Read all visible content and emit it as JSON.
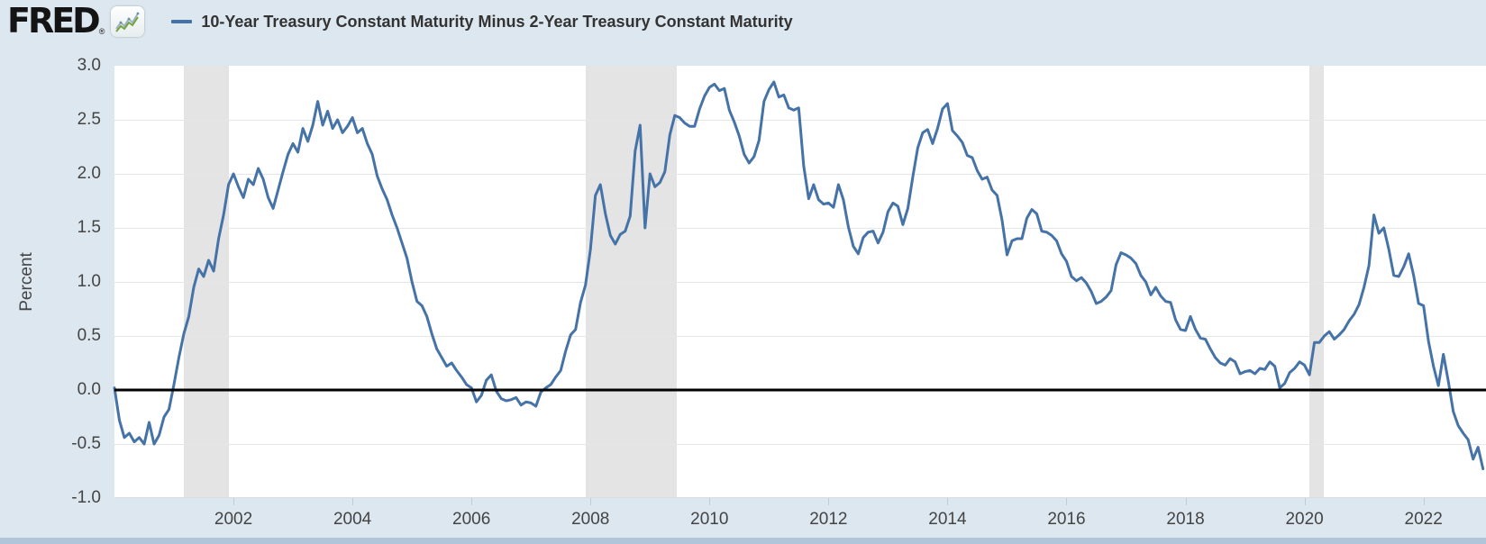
{
  "header": {
    "logo_text": "FRED",
    "registered_mark": "®",
    "legend": {
      "series_label": "10-Year Treasury Constant Maturity Minus 2-Year Treasury Constant Maturity",
      "series_color": "#4572a7"
    }
  },
  "colors": {
    "page_background": "#dde7ef",
    "plot_background": "#ffffff",
    "gridline": "#e6e6e6",
    "recession_band": "#e4e4e4",
    "series_line": "#4572a7",
    "zero_line": "#000000",
    "axis_text": "#444444",
    "bottom_strip": "#b0c6d8",
    "icon_line_green": "#74a33e",
    "icon_line_gray": "#9db3c4"
  },
  "chart_data": {
    "type": "line",
    "title": "10-Year Treasury Constant Maturity Minus 2-Year Treasury Constant Maturity",
    "xlabel": "",
    "ylabel": "Percent",
    "units": "Percent",
    "ylim": [
      -1.0,
      3.0
    ],
    "x_range_years": [
      2000.0,
      2023.05
    ],
    "y_ticks": [
      "3.0",
      "2.5",
      "2.0",
      "1.5",
      "1.0",
      "0.5",
      "0.0",
      "-0.5",
      "-1.0"
    ],
    "y_tick_values": [
      3.0,
      2.5,
      2.0,
      1.5,
      1.0,
      0.5,
      0.0,
      -0.5,
      -1.0
    ],
    "x_ticks": [
      2002,
      2004,
      2006,
      2008,
      2010,
      2012,
      2014,
      2016,
      2018,
      2020,
      2022
    ],
    "grid": "horizontal gridlines at 0.5 intervals; heavy black line at 0.0",
    "legend_position": "top header row",
    "recession_bands_years": [
      [
        2001.17,
        2001.92
      ],
      [
        2007.92,
        2009.45
      ],
      [
        2020.08,
        2020.33
      ]
    ],
    "series": [
      {
        "name": "10-Year Treasury Constant Maturity Minus 2-Year Treasury Constant Maturity",
        "color": "#4572a7",
        "frequency": "monthly",
        "start_year": 2000,
        "points_per_year": 12,
        "values": [
          0.02,
          -0.28,
          -0.44,
          -0.4,
          -0.48,
          -0.44,
          -0.5,
          -0.3,
          -0.5,
          -0.42,
          -0.25,
          -0.18,
          0.05,
          0.3,
          0.52,
          0.68,
          0.95,
          1.12,
          1.05,
          1.2,
          1.1,
          1.4,
          1.62,
          1.9,
          2.0,
          1.88,
          1.78,
          1.95,
          1.9,
          2.05,
          1.95,
          1.78,
          1.68,
          1.85,
          2.02,
          2.18,
          2.28,
          2.2,
          2.42,
          2.3,
          2.45,
          2.67,
          2.45,
          2.58,
          2.42,
          2.5,
          2.38,
          2.44,
          2.52,
          2.38,
          2.42,
          2.28,
          2.18,
          1.98,
          1.86,
          1.76,
          1.62,
          1.5,
          1.36,
          1.22,
          1.0,
          0.82,
          0.78,
          0.68,
          0.52,
          0.38,
          0.3,
          0.22,
          0.25,
          0.18,
          0.12,
          0.05,
          0.02,
          -0.11,
          -0.05,
          0.09,
          0.14,
          -0.01,
          -0.08,
          -0.1,
          -0.09,
          -0.07,
          -0.14,
          -0.11,
          -0.12,
          -0.15,
          -0.02,
          0.02,
          0.05,
          0.12,
          0.18,
          0.36,
          0.51,
          0.56,
          0.81,
          0.97,
          1.3,
          1.8,
          1.9,
          1.63,
          1.43,
          1.35,
          1.44,
          1.47,
          1.61,
          2.21,
          2.45,
          1.5,
          2.0,
          1.88,
          1.92,
          2.02,
          2.36,
          2.54,
          2.52,
          2.47,
          2.44,
          2.44,
          2.6,
          2.72,
          2.8,
          2.83,
          2.77,
          2.79,
          2.59,
          2.48,
          2.35,
          2.18,
          2.1,
          2.16,
          2.31,
          2.67,
          2.78,
          2.85,
          2.71,
          2.73,
          2.61,
          2.59,
          2.61,
          2.07,
          1.77,
          1.9,
          1.76,
          1.72,
          1.73,
          1.69,
          1.9,
          1.76,
          1.51,
          1.33,
          1.26,
          1.41,
          1.46,
          1.47,
          1.36,
          1.46,
          1.65,
          1.73,
          1.7,
          1.53,
          1.68,
          1.97,
          2.24,
          2.38,
          2.41,
          2.28,
          2.42,
          2.6,
          2.65,
          2.4,
          2.35,
          2.29,
          2.17,
          2.15,
          2.03,
          1.95,
          1.97,
          1.85,
          1.8,
          1.57,
          1.25,
          1.38,
          1.4,
          1.4,
          1.59,
          1.67,
          1.63,
          1.47,
          1.46,
          1.43,
          1.38,
          1.26,
          1.19,
          1.05,
          1.01,
          1.04,
          0.99,
          0.91,
          0.8,
          0.82,
          0.86,
          0.92,
          1.16,
          1.27,
          1.25,
          1.22,
          1.17,
          1.06,
          1.0,
          0.88,
          0.95,
          0.87,
          0.82,
          0.81,
          0.65,
          0.56,
          0.55,
          0.68,
          0.56,
          0.48,
          0.47,
          0.38,
          0.3,
          0.25,
          0.23,
          0.29,
          0.26,
          0.15,
          0.17,
          0.18,
          0.15,
          0.2,
          0.19,
          0.26,
          0.22,
          0.02,
          0.06,
          0.16,
          0.2,
          0.26,
          0.23,
          0.14,
          0.44,
          0.44,
          0.5,
          0.54,
          0.47,
          0.51,
          0.56,
          0.64,
          0.7,
          0.79,
          0.95,
          1.15,
          1.62,
          1.45,
          1.5,
          1.3,
          1.06,
          1.05,
          1.14,
          1.26,
          1.06,
          0.8,
          0.78,
          0.45,
          0.22,
          0.04,
          0.33,
          0.08,
          -0.2,
          -0.33,
          -0.4,
          -0.46,
          -0.64,
          -0.53,
          -0.73
        ]
      }
    ]
  }
}
